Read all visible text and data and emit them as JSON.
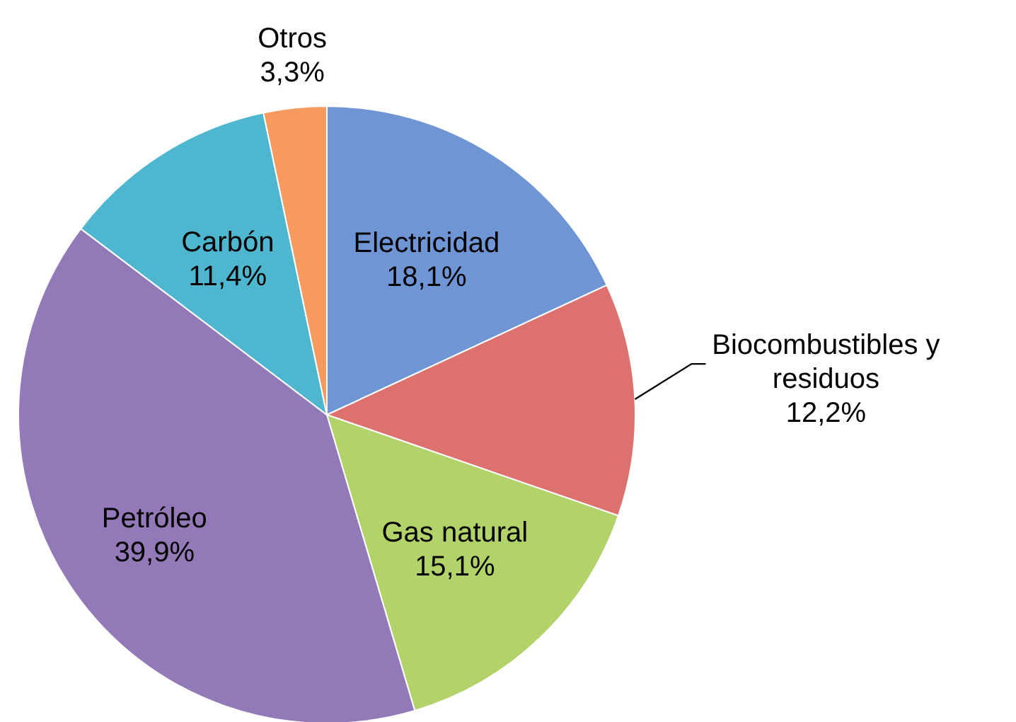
{
  "chart_data": {
    "type": "pie",
    "categories": [
      "Electricidad",
      "Biocombustibles y residuos",
      "Gas natural",
      "Petróleo",
      "Carbón",
      "Otros"
    ],
    "values": [
      18.1,
      12.2,
      15.1,
      39.9,
      11.4,
      3.3
    ],
    "value_labels": [
      "18,1%",
      "12,2%",
      "15,1%",
      "39,9%",
      "11,4%",
      "3,3%"
    ],
    "colors": [
      "#6f95d4",
      "#dc716e",
      "#b2d26a",
      "#9479b8",
      "#4fb6d0",
      "#f79a60"
    ]
  }
}
